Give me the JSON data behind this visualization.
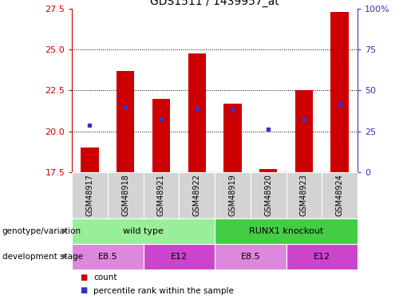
{
  "title": "GDS1511 / 1439957_at",
  "samples": [
    "GSM48917",
    "GSM48918",
    "GSM48921",
    "GSM48922",
    "GSM48919",
    "GSM48920",
    "GSM48923",
    "GSM48924"
  ],
  "count_values": [
    19.0,
    23.7,
    22.0,
    24.75,
    21.7,
    17.7,
    22.5,
    27.3
  ],
  "percentile_values": [
    20.35,
    21.5,
    20.75,
    21.4,
    21.3,
    20.1,
    20.73,
    21.62
  ],
  "y_min": 17.5,
  "y_max": 27.5,
  "y_ticks": [
    17.5,
    20.0,
    22.5,
    25.0,
    27.5
  ],
  "y2_ticks": [
    0,
    25,
    50,
    75,
    100
  ],
  "y2_ticklabels": [
    "0",
    "25",
    "50",
    "75",
    "100%"
  ],
  "bar_color": "#cc0000",
  "dot_color": "#3333cc",
  "bar_width": 0.5,
  "genotype_groups": [
    {
      "label": "wild type",
      "start": 0,
      "end": 4,
      "color": "#99ee99"
    },
    {
      "label": "RUNX1 knockout",
      "start": 4,
      "end": 8,
      "color": "#44cc44"
    }
  ],
  "stage_groups": [
    {
      "label": "E8.5",
      "start": 0,
      "end": 2,
      "color": "#dd88dd"
    },
    {
      "label": "E12",
      "start": 2,
      "end": 4,
      "color": "#cc44cc"
    },
    {
      "label": "E8.5",
      "start": 4,
      "end": 6,
      "color": "#dd88dd"
    },
    {
      "label": "E12",
      "start": 6,
      "end": 8,
      "color": "#cc44cc"
    }
  ],
  "legend_count_label": "count",
  "legend_pct_label": "percentile rank within the sample",
  "bar_color_red": "#cc0000",
  "dot_color_blue": "#3333cc",
  "ylabel_color": "#cc0000",
  "y2label_color": "#3333cc",
  "background_color": "#ffffff"
}
